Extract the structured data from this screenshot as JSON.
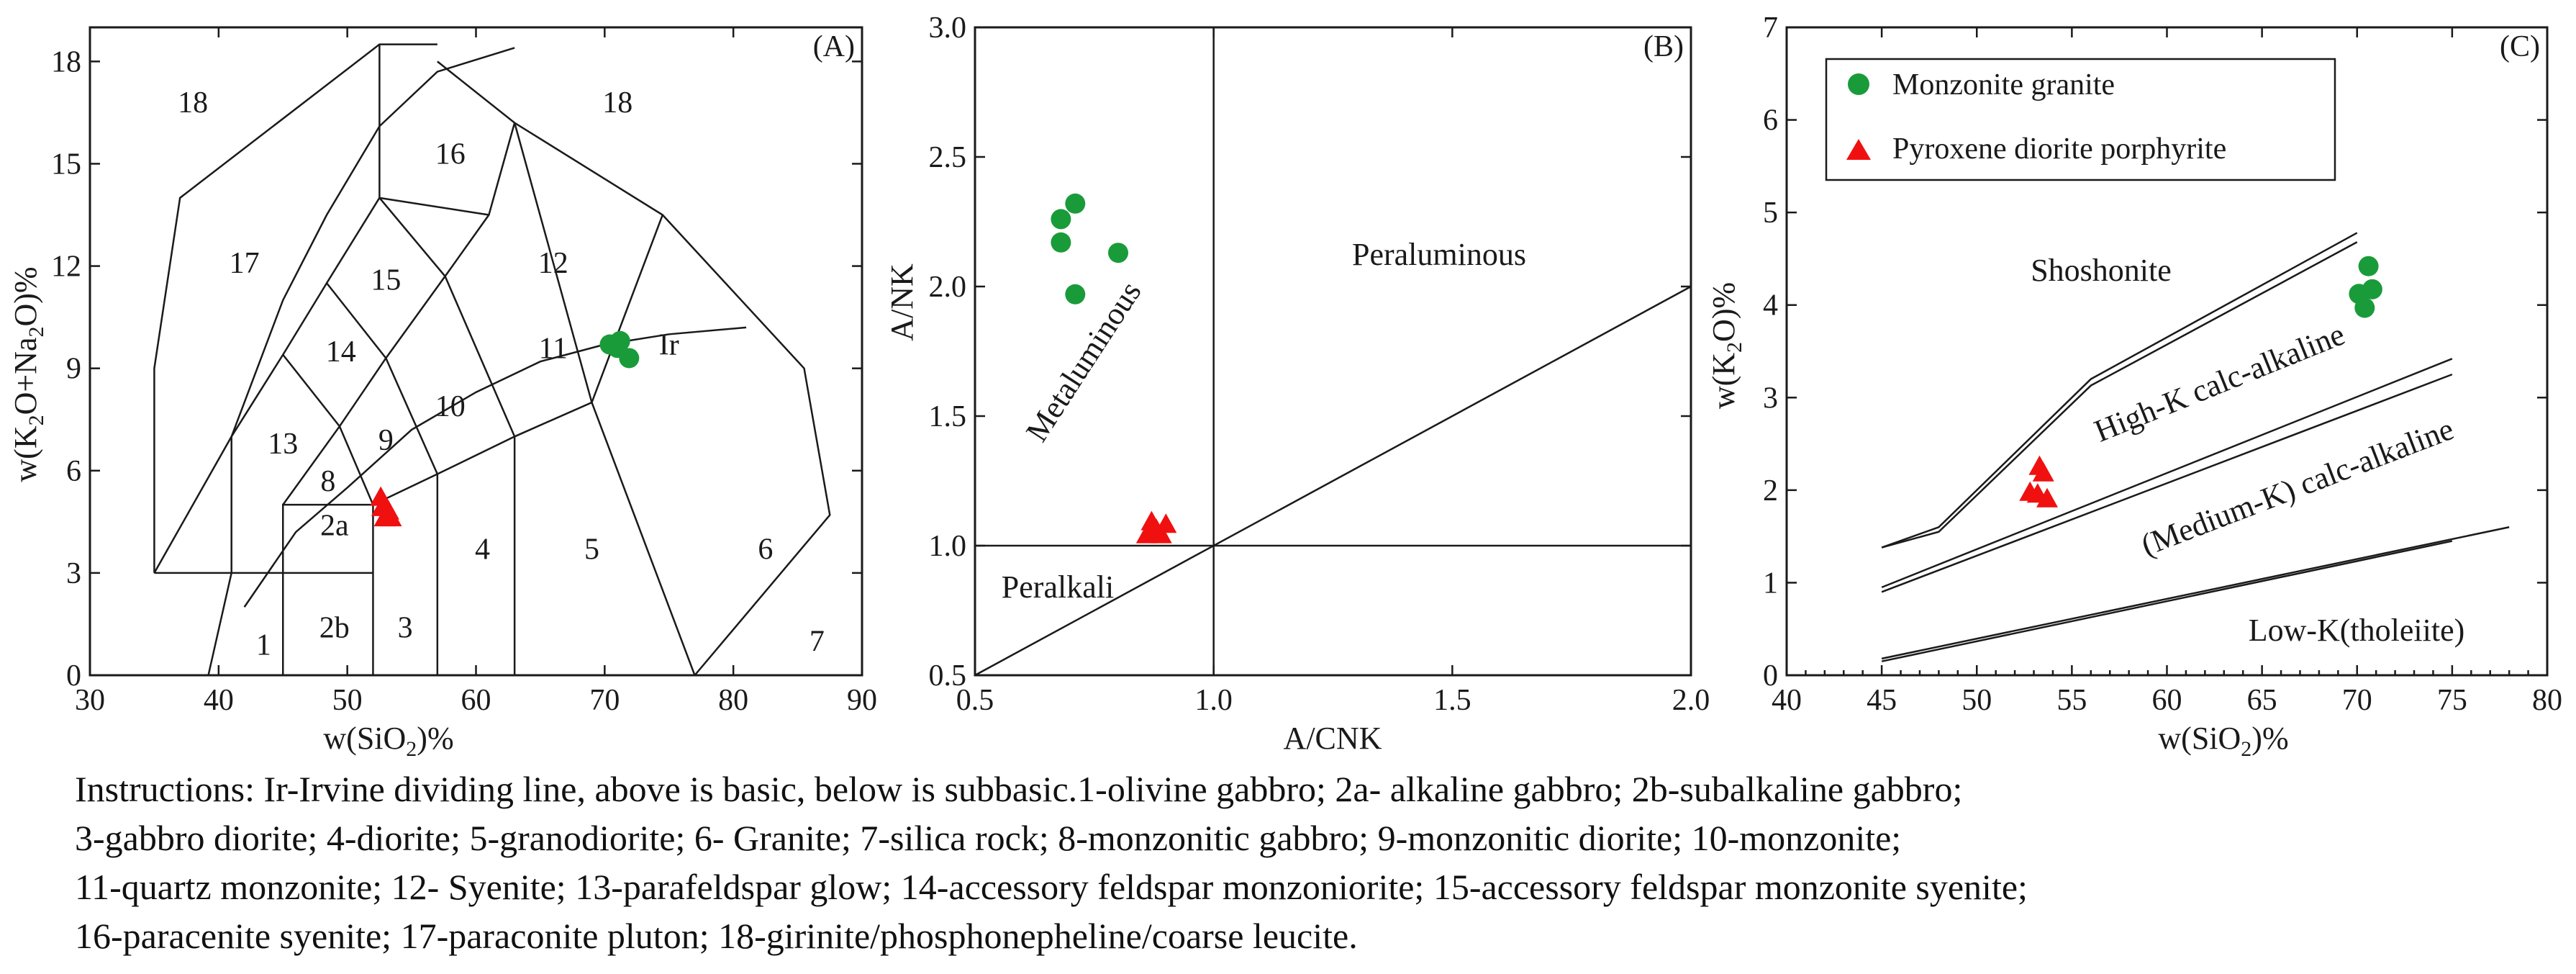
{
  "colors": {
    "granite": "#1a9b3a",
    "diorite": "#f01010",
    "ink": "#1a1a1a"
  },
  "chart_data": [
    {
      "type": "scatter",
      "panel_label": "(A)",
      "xlabel_pre": "w(SiO",
      "xlabel_sub": "2",
      "xlabel_post": ")%",
      "ylabel_parts": [
        "w(K",
        "2",
        "O+Na",
        "2",
        "O)%"
      ],
      "xlim": [
        30,
        90
      ],
      "ylim": [
        0,
        19
      ],
      "xticks": [
        30,
        40,
        50,
        60,
        70,
        80,
        90
      ],
      "yticks": [
        0,
        3,
        6,
        9,
        12,
        15,
        18
      ],
      "field_labels": [
        {
          "t": "1",
          "x": 43.5,
          "y": 0.9
        },
        {
          "t": "2a",
          "x": 49,
          "y": 4.4
        },
        {
          "t": "2b",
          "x": 49,
          "y": 1.4
        },
        {
          "t": "3",
          "x": 54.5,
          "y": 1.4
        },
        {
          "t": "4",
          "x": 60.5,
          "y": 3.7
        },
        {
          "t": "5",
          "x": 69,
          "y": 3.7
        },
        {
          "t": "6",
          "x": 82.5,
          "y": 3.7
        },
        {
          "t": "7",
          "x": 86.5,
          "y": 1
        },
        {
          "t": "8",
          "x": 48.5,
          "y": 5.7
        },
        {
          "t": "9",
          "x": 53,
          "y": 6.9
        },
        {
          "t": "10",
          "x": 58,
          "y": 7.9
        },
        {
          "t": "11",
          "x": 66,
          "y": 9.6
        },
        {
          "t": "12",
          "x": 66,
          "y": 12.1
        },
        {
          "t": "13",
          "x": 45,
          "y": 6.8
        },
        {
          "t": "14",
          "x": 49.5,
          "y": 9.5
        },
        {
          "t": "15",
          "x": 53,
          "y": 11.6
        },
        {
          "t": "16",
          "x": 58,
          "y": 15.3
        },
        {
          "t": "17",
          "x": 42,
          "y": 12.1
        },
        {
          "t": "18",
          "x": 38,
          "y": 16.8
        },
        {
          "t": "18",
          "x": 71,
          "y": 16.8
        },
        {
          "t": "Ir",
          "x": 75,
          "y": 9.7
        }
      ],
      "series": [
        {
          "name": "Monzonite granite",
          "x": [
            70.4,
            71.2,
            71.9,
            71.0
          ],
          "y": [
            9.7,
            9.8,
            9.3,
            9.6
          ]
        },
        {
          "name": "Pyroxene diorite porphyrite",
          "x": [
            52.6,
            53.2,
            52.9,
            53.4,
            52.7
          ],
          "y": [
            5.2,
            4.8,
            4.6,
            4.6,
            4.9
          ]
        }
      ]
    },
    {
      "type": "scatter",
      "panel_label": "(B)",
      "xlabel": "A/CNK",
      "ylabel": "A/NK",
      "xlim": [
        0.5,
        2.0
      ],
      "ylim": [
        0.5,
        3.0
      ],
      "xticks": [
        "0.5",
        "1.0",
        "1.5",
        "2.0"
      ],
      "yticks": [
        "0.5",
        "1.0",
        "1.5",
        "2.0",
        "2.5",
        "3.0"
      ],
      "region_labels": [
        "Peraluminous",
        "Metaluminous",
        "Peralkali"
      ],
      "series": [
        {
          "name": "Monzonite granite",
          "x": [
            0.71,
            0.68,
            0.68,
            0.8,
            0.71
          ],
          "y": [
            2.32,
            2.26,
            2.17,
            2.13,
            1.97
          ]
        },
        {
          "name": "Pyroxene diorite porphyrite",
          "x": [
            0.87,
            0.9,
            0.88,
            0.86,
            0.89
          ],
          "y": [
            1.09,
            1.08,
            1.06,
            1.04,
            1.04
          ]
        }
      ]
    },
    {
      "type": "scatter",
      "panel_label": "(C)",
      "xlabel_pre": "w(SiO",
      "xlabel_sub": "2",
      "xlabel_post": ")%",
      "ylabel_pre": "w(K",
      "ylabel_sub": "2",
      "ylabel_post": "O)%",
      "xlim": [
        40,
        80
      ],
      "ylim": [
        0,
        7
      ],
      "xticks": [
        40,
        45,
        50,
        55,
        60,
        65,
        70,
        75,
        80
      ],
      "yticks": [
        0,
        1,
        2,
        3,
        4,
        5,
        6,
        7
      ],
      "region_labels": [
        "Shoshonite",
        "High-K calc-alkaline",
        "(Medium-K) calc-alkaline",
        "Low-K(tholeiite)"
      ],
      "legend": [
        "Monzonite granite",
        "Pyroxene diorite porphyrite"
      ],
      "series": [
        {
          "name": "Monzonite granite",
          "x": [
            70.6,
            70.1,
            70.8,
            70.4
          ],
          "y": [
            4.42,
            4.12,
            4.17,
            3.97
          ]
        },
        {
          "name": "Pyroxene diorite porphyrite",
          "x": [
            53.3,
            53.5,
            52.8,
            53.7,
            53.2
          ],
          "y": [
            2.25,
            2.18,
            1.97,
            1.9,
            1.95
          ]
        }
      ]
    }
  ],
  "caption": [
    "Instructions: Ir-Irvine dividing line, above is basic, below is subbasic.1-olivine gabbro; 2a- alkaline gabbro; 2b-subalkaline gabbro;",
    "3-gabbro diorite; 4-diorite; 5-granodiorite; 6- Granite; 7-silica rock; 8-monzonitic gabbro; 9-monzonitic diorite; 10-monzonite;",
    "11-quartz monzonite; 12- Syenite; 13-parafeldspar glow; 14-accessory feldspar monzoniorite; 15-accessory feldspar monzonite syenite;",
    "16-paracenite syenite; 17-paraconite pluton; 18-girinite/phosphonepheline/coarse leucite."
  ]
}
